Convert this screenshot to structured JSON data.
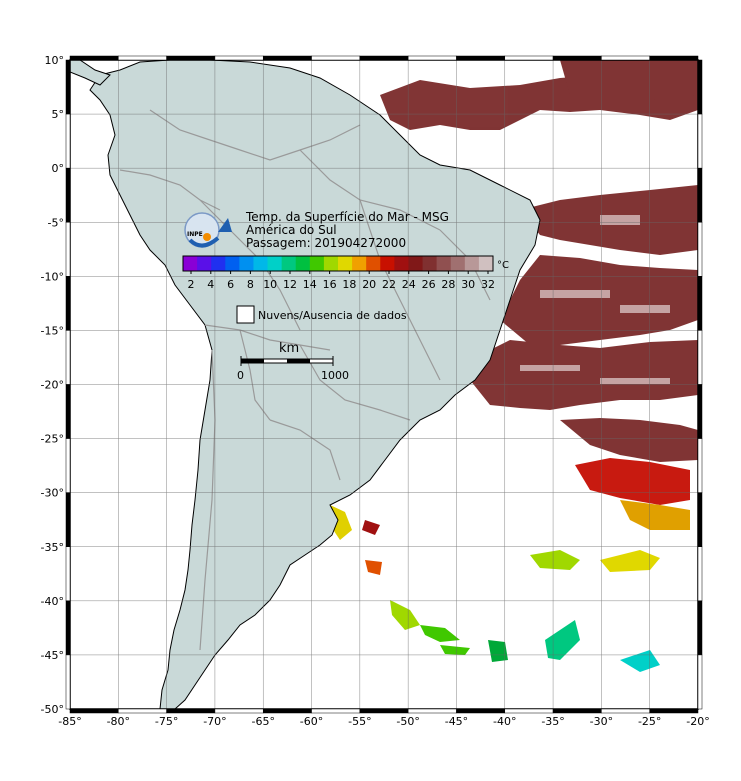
{
  "map": {
    "title": "Temp. da Superfície do Mar - MSG",
    "region": "América do Sul",
    "pass": "Passagem: 201904272000",
    "logo_text": "INPE",
    "lon_labels": [
      "-85°",
      "-80°",
      "-75°",
      "-70°",
      "-65°",
      "-60°",
      "-55°",
      "-50°",
      "-45°",
      "-40°",
      "-35°",
      "-30°",
      "-25°",
      "-20°"
    ],
    "lat_labels": [
      "10°",
      "5°",
      "0°",
      "-5°",
      "-10°",
      "-15°",
      "-20°",
      "-25°",
      "-30°",
      "-35°",
      "-40°",
      "-45°",
      "-50°"
    ],
    "lon_range": [
      -85,
      -20
    ],
    "lat_range": [
      -50,
      10
    ],
    "colorbar": {
      "unit": "°C",
      "ticks": [
        "2",
        "4",
        "6",
        "8",
        "10",
        "12",
        "14",
        "16",
        "18",
        "20",
        "22",
        "24",
        "26",
        "28",
        "30",
        "32"
      ],
      "colors": [
        "#8a00d6",
        "#5a10e8",
        "#2030f0",
        "#0060f0",
        "#0090f0",
        "#00b8e8",
        "#00d0c8",
        "#00c880",
        "#00c040",
        "#40c800",
        "#a0d800",
        "#e0d800",
        "#f0a000",
        "#e05000",
        "#c81000",
        "#a01010",
        "#801818",
        "#803030",
        "#905050",
        "#a07070",
        "#b89898",
        "#d0c0c0"
      ]
    },
    "cloud_legend": "Nuvens/Ausencia de dados",
    "scalebar": {
      "unit": "km",
      "start": "0",
      "end": "1000"
    },
    "colors": {
      "land": "#c9d9d8",
      "border": "#9a9a9a",
      "sst_warm": "#7a2828",
      "frame": "#000000"
    }
  }
}
